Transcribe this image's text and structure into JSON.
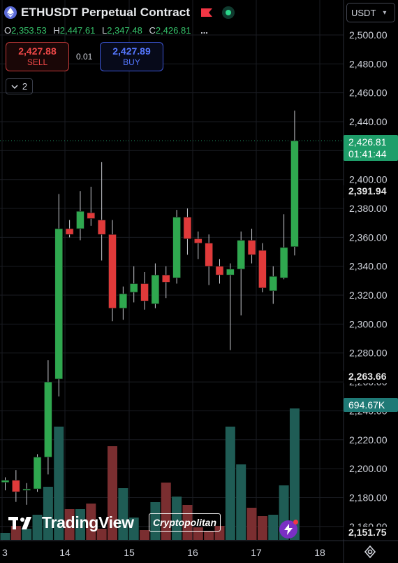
{
  "header": {
    "symbol": "ETHUSDT Perpetual Contract",
    "ohlc": [
      {
        "k": "O",
        "v": "2,353.53"
      },
      {
        "k": "H",
        "v": "2,447.61"
      },
      {
        "k": "L",
        "v": "2,347.48"
      },
      {
        "k": "C",
        "v": "2,426.81"
      }
    ],
    "more": "..."
  },
  "trade": {
    "sell_price": "2,427.88",
    "sell_label": "SELL",
    "spread": "0.01",
    "buy_price": "2,427.89",
    "buy_label": "BUY"
  },
  "indicators_toggle": {
    "count": "2"
  },
  "currency_selector": {
    "value": "USDT"
  },
  "price_tags": {
    "last_price": "2,426.81",
    "countdown": "01:41:44",
    "level_1": "2,391.94",
    "level_2": "2,263.66",
    "volume": "694.67K",
    "level_3": "2,151.75"
  },
  "watermark": {
    "brand": "TradingView",
    "channel": "Cryptopolitan"
  },
  "colors": {
    "up": "#2fa84f",
    "down": "#e03a3a",
    "vol_up": "#1f5c55",
    "vol_down": "#7a2e30",
    "last_price": "#1f9e6a"
  },
  "chart_data": {
    "type": "candlestick",
    "title": "ETHUSDT Perpetual Contract",
    "price_axis_ticks": [
      "2,500.00",
      "2,480.00",
      "2,460.00",
      "2,440.00",
      "2,420.00",
      "2,400.00",
      "2,380.00",
      "2,360.00",
      "2,340.00",
      "2,320.00",
      "2,300.00",
      "2,280.00",
      "2,260.00",
      "2,240.00",
      "2,220.00",
      "2,200.00",
      "2,180.00",
      "2,160.00"
    ],
    "time_axis_ticks": [
      "3",
      "14",
      "15",
      "16",
      "17",
      "18"
    ],
    "ylim": [
      2150,
      2520
    ],
    "grid": true,
    "candles": [
      {
        "o": 2190.5,
        "h": 2194,
        "l": 2185,
        "c": 2192,
        "v": 0.05
      },
      {
        "o": 2192,
        "h": 2199,
        "l": 2177,
        "c": 2184,
        "v": 0.1
      },
      {
        "o": 2185,
        "h": 2190,
        "l": 2175,
        "c": 2186,
        "v": 0.08
      },
      {
        "o": 2186,
        "h": 2210,
        "l": 2184,
        "c": 2208,
        "v": 0.18
      },
      {
        "o": 2208,
        "h": 2275,
        "l": 2196,
        "c": 2260,
        "v": 0.38
      },
      {
        "o": 2262,
        "h": 2390,
        "l": 2250,
        "c": 2366,
        "v": 0.81
      },
      {
        "o": 2366,
        "h": 2372,
        "l": 2360,
        "c": 2362,
        "v": 0.22
      },
      {
        "o": 2366,
        "h": 2392,
        "l": 2358,
        "c": 2378,
        "v": 0.22
      },
      {
        "o": 2377,
        "h": 2395,
        "l": 2368,
        "c": 2373,
        "v": 0.26
      },
      {
        "o": 2372,
        "h": 2412,
        "l": 2344,
        "c": 2362,
        "v": 0.08
      },
      {
        "o": 2362,
        "h": 2372,
        "l": 2302,
        "c": 2311,
        "v": 0.67
      },
      {
        "o": 2311,
        "h": 2326,
        "l": 2303,
        "c": 2321,
        "v": 0.37
      },
      {
        "o": 2322,
        "h": 2340,
        "l": 2315,
        "c": 2328,
        "v": 0.16
      },
      {
        "o": 2328,
        "h": 2336,
        "l": 2310,
        "c": 2316,
        "v": 0.07
      },
      {
        "o": 2314,
        "h": 2342,
        "l": 2311,
        "c": 2334,
        "v": 0.27
      },
      {
        "o": 2334,
        "h": 2340,
        "l": 2318,
        "c": 2329,
        "v": 0.41
      },
      {
        "o": 2332,
        "h": 2379,
        "l": 2328,
        "c": 2374,
        "v": 0.31
      },
      {
        "o": 2374,
        "h": 2380,
        "l": 2348,
        "c": 2359,
        "v": 0.25
      },
      {
        "o": 2359,
        "h": 2364,
        "l": 2345,
        "c": 2356,
        "v": 0.09
      },
      {
        "o": 2356,
        "h": 2362,
        "l": 2327,
        "c": 2340,
        "v": 0.06
      },
      {
        "o": 2340,
        "h": 2345,
        "l": 2328,
        "c": 2334,
        "v": 0.1
      },
      {
        "o": 2334,
        "h": 2342,
        "l": 2282,
        "c": 2338,
        "v": 0.81
      },
      {
        "o": 2338,
        "h": 2364,
        "l": 2306,
        "c": 2358,
        "v": 0.54
      },
      {
        "o": 2358,
        "h": 2366,
        "l": 2342,
        "c": 2348,
        "v": 0.23
      },
      {
        "o": 2351,
        "h": 2356,
        "l": 2322,
        "c": 2325,
        "v": 0.17
      },
      {
        "o": 2323,
        "h": 2340,
        "l": 2314,
        "c": 2333,
        "v": 0.18
      },
      {
        "o": 2332,
        "h": 2376,
        "l": 2331,
        "c": 2353,
        "v": 0.39
      },
      {
        "o": 2353.53,
        "h": 2447.61,
        "l": 2347.48,
        "c": 2426.81,
        "v": 0.94
      }
    ]
  }
}
